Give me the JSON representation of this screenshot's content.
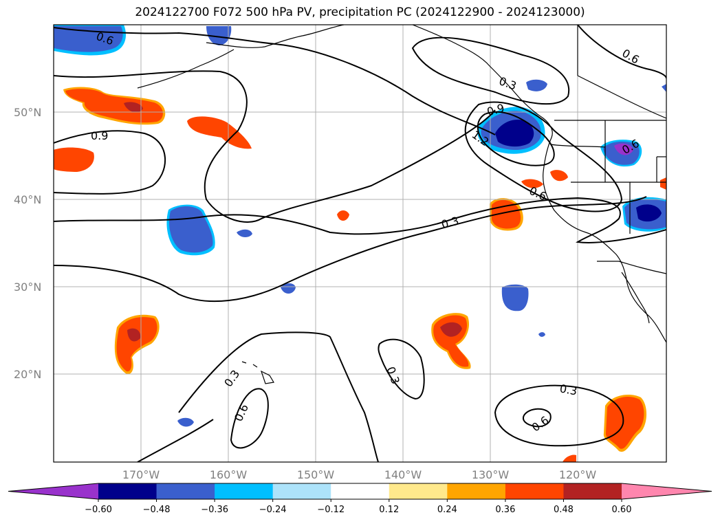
{
  "title": "2024122700 F072 500 hPa PV, precipitation PC (2024122900 - 2024123000)",
  "axes": {
    "lat_labels": [
      "20°N",
      "30°N",
      "40°N",
      "50°N"
    ],
    "lon_labels": [
      "170°W",
      "160°W",
      "150°W",
      "140°W",
      "130°W",
      "120°W"
    ]
  },
  "contour_labels": [
    "0.6",
    "0.9",
    "0.3",
    "0.9",
    "1.2",
    "0.6",
    "0.6",
    "0.3",
    "0.3",
    "0.6",
    "0.3",
    "0.3",
    "0.6",
    "0.6"
  ],
  "colorbar": {
    "colors": [
      "#9932CC",
      "#00008B",
      "#3A5FCD",
      "#00BFFF",
      "#ADE3FA",
      "#FFFFFF",
      "#FFE98C",
      "#FFA500",
      "#FF4500",
      "#B22222",
      "#FF86AE"
    ],
    "ticks": [
      "−0.60",
      "−0.48",
      "−0.36",
      "−0.24",
      "−0.12",
      "0.12",
      "0.24",
      "0.36",
      "0.48",
      "0.60"
    ]
  }
}
